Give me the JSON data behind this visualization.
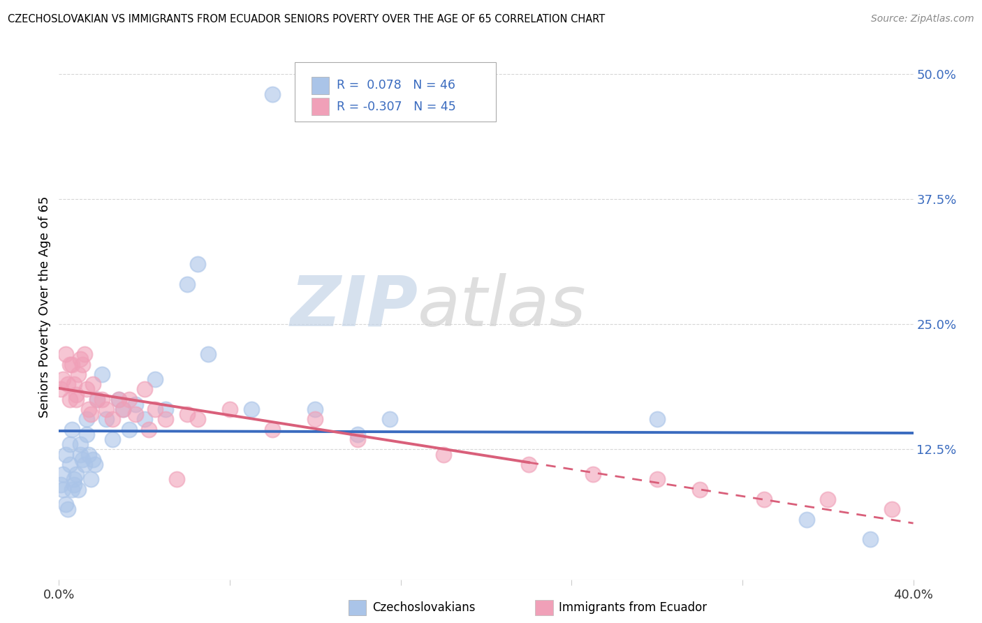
{
  "title": "CZECHOSLOVAKIAN VS IMMIGRANTS FROM ECUADOR SENIORS POVERTY OVER THE AGE OF 65 CORRELATION CHART",
  "source": "Source: ZipAtlas.com",
  "ylabel": "Seniors Poverty Over the Age of 65",
  "xlim": [
    0.0,
    0.4
  ],
  "ylim": [
    -0.005,
    0.54
  ],
  "yticks": [
    0.125,
    0.25,
    0.375,
    0.5
  ],
  "ytick_labels": [
    "12.5%",
    "25.0%",
    "37.5%",
    "50.0%"
  ],
  "legend1_r": "0.078",
  "legend1_n": "46",
  "legend2_r": "-0.307",
  "legend2_n": "45",
  "blue_color": "#aac4e8",
  "pink_color": "#f0a0b8",
  "blue_line_color": "#3a6bbf",
  "pink_line_color": "#d95f7a",
  "background_color": "#ffffff",
  "grid_color": "#cccccc",
  "czech_x": [
    0.001,
    0.002,
    0.002,
    0.003,
    0.003,
    0.004,
    0.005,
    0.005,
    0.006,
    0.006,
    0.007,
    0.007,
    0.008,
    0.009,
    0.01,
    0.01,
    0.011,
    0.012,
    0.013,
    0.013,
    0.014,
    0.015,
    0.016,
    0.017,
    0.018,
    0.02,
    0.022,
    0.025,
    0.028,
    0.03,
    0.033,
    0.036,
    0.04,
    0.045,
    0.05,
    0.06,
    0.065,
    0.07,
    0.09,
    0.1,
    0.12,
    0.14,
    0.155,
    0.28,
    0.35,
    0.38
  ],
  "czech_y": [
    0.09,
    0.085,
    0.1,
    0.12,
    0.07,
    0.065,
    0.11,
    0.13,
    0.085,
    0.145,
    0.09,
    0.095,
    0.1,
    0.085,
    0.13,
    0.12,
    0.115,
    0.11,
    0.14,
    0.155,
    0.12,
    0.095,
    0.115,
    0.11,
    0.175,
    0.2,
    0.155,
    0.135,
    0.175,
    0.165,
    0.145,
    0.17,
    0.155,
    0.195,
    0.165,
    0.29,
    0.31,
    0.22,
    0.165,
    0.48,
    0.165,
    0.14,
    0.155,
    0.155,
    0.055,
    0.035
  ],
  "ecuador_x": [
    0.001,
    0.002,
    0.003,
    0.004,
    0.005,
    0.005,
    0.006,
    0.007,
    0.008,
    0.008,
    0.009,
    0.01,
    0.011,
    0.012,
    0.013,
    0.014,
    0.015,
    0.016,
    0.018,
    0.02,
    0.022,
    0.025,
    0.028,
    0.03,
    0.033,
    0.036,
    0.04,
    0.042,
    0.045,
    0.05,
    0.055,
    0.06,
    0.065,
    0.08,
    0.1,
    0.12,
    0.14,
    0.18,
    0.22,
    0.25,
    0.28,
    0.3,
    0.33,
    0.36,
    0.39
  ],
  "ecuador_y": [
    0.185,
    0.195,
    0.22,
    0.19,
    0.175,
    0.21,
    0.21,
    0.19,
    0.18,
    0.175,
    0.2,
    0.215,
    0.21,
    0.22,
    0.185,
    0.165,
    0.16,
    0.19,
    0.175,
    0.175,
    0.165,
    0.155,
    0.175,
    0.165,
    0.175,
    0.16,
    0.185,
    0.145,
    0.165,
    0.155,
    0.095,
    0.16,
    0.155,
    0.165,
    0.145,
    0.155,
    0.135,
    0.12,
    0.11,
    0.1,
    0.095,
    0.085,
    0.075,
    0.075,
    0.065
  ]
}
